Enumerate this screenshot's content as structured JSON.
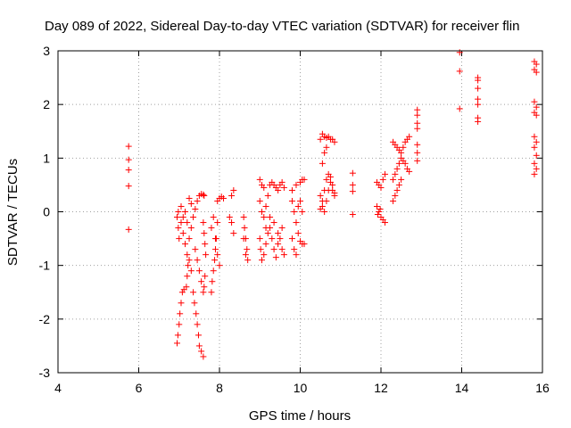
{
  "chart_data": {
    "type": "scatter",
    "title": "Day 089 of 2022, Sidereal Day-to-day VTEC variation (SDTVAR) for receiver flin",
    "xlabel": "GPS time / hours",
    "ylabel": "SDTVAR / TECUs",
    "xlim": [
      4,
      16
    ],
    "ylim": [
      -3,
      3
    ],
    "xticks": [
      4,
      6,
      8,
      10,
      12,
      14,
      16
    ],
    "yticks": [
      -3,
      -2,
      -1,
      0,
      1,
      2,
      3
    ],
    "xtick_labels": [
      "4",
      "6",
      "8",
      "10",
      "12",
      "14",
      "16"
    ],
    "ytick_labels": [
      "-3",
      "-2",
      "-1",
      "0",
      "1",
      "2",
      "3"
    ],
    "grid": true,
    "marker": "plus",
    "color": "#ff0000",
    "series": [
      {
        "name": "SDTVAR",
        "points": [
          [
            5.75,
            1.22
          ],
          [
            5.75,
            0.97
          ],
          [
            5.75,
            0.78
          ],
          [
            5.75,
            0.48
          ],
          [
            5.75,
            -0.33
          ],
          [
            6.95,
            -2.45
          ],
          [
            6.97,
            -2.3
          ],
          [
            7.0,
            -2.1
          ],
          [
            7.02,
            -1.9
          ],
          [
            7.05,
            -1.7
          ],
          [
            7.08,
            -1.5
          ],
          [
            7.12,
            -1.45
          ],
          [
            7.18,
            -1.4
          ],
          [
            7.2,
            -1.2
          ],
          [
            7.22,
            -1.0
          ],
          [
            7.25,
            -0.9
          ],
          [
            7.3,
            -1.1
          ],
          [
            7.35,
            -1.5
          ],
          [
            7.38,
            -1.7
          ],
          [
            7.42,
            -1.9
          ],
          [
            7.45,
            -2.1
          ],
          [
            7.48,
            -2.3
          ],
          [
            7.5,
            -2.5
          ],
          [
            7.55,
            -2.6
          ],
          [
            7.6,
            -2.7
          ],
          [
            6.95,
            -0.1
          ],
          [
            6.98,
            -0.3
          ],
          [
            7.0,
            -0.5
          ],
          [
            7.05,
            -0.2
          ],
          [
            7.1,
            -0.4
          ],
          [
            7.15,
            -0.6
          ],
          [
            7.2,
            -0.8
          ],
          [
            7.25,
            -0.5
          ],
          [
            7.3,
            -0.3
          ],
          [
            7.35,
            -0.1
          ],
          [
            7.4,
            0.05
          ],
          [
            7.45,
            0.2
          ],
          [
            7.5,
            0.3
          ],
          [
            7.55,
            0.33
          ],
          [
            7.6,
            0.32
          ],
          [
            6.98,
            0.0
          ],
          [
            7.05,
            0.1
          ],
          [
            7.1,
            -0.1
          ],
          [
            7.15,
            0.0
          ],
          [
            7.2,
            -0.2
          ],
          [
            7.25,
            0.25
          ],
          [
            7.3,
            0.15
          ],
          [
            7.4,
            -0.7
          ],
          [
            7.45,
            -0.9
          ],
          [
            7.5,
            -1.1
          ],
          [
            7.55,
            -1.3
          ],
          [
            7.6,
            -1.5
          ],
          [
            7.62,
            -1.4
          ],
          [
            7.64,
            -1.2
          ],
          [
            7.6,
            -0.2
          ],
          [
            7.62,
            -0.4
          ],
          [
            7.64,
            -0.6
          ],
          [
            7.66,
            -0.8
          ],
          [
            7.62,
            0.3
          ],
          [
            7.8,
            -1.5
          ],
          [
            7.82,
            -1.3
          ],
          [
            7.85,
            -1.1
          ],
          [
            7.88,
            -0.9
          ],
          [
            7.9,
            -0.7
          ],
          [
            7.92,
            -0.5
          ],
          [
            7.95,
            -0.2
          ],
          [
            7.95,
            0.2
          ],
          [
            8.0,
            0.25
          ],
          [
            8.05,
            0.28
          ],
          [
            8.1,
            0.25
          ],
          [
            7.8,
            -0.3
          ],
          [
            7.85,
            -0.1
          ],
          [
            7.9,
            -0.5
          ],
          [
            7.95,
            -0.8
          ],
          [
            8.0,
            -1.0
          ],
          [
            8.3,
            0.3
          ],
          [
            8.35,
            0.4
          ],
          [
            8.3,
            -0.2
          ],
          [
            8.35,
            -0.4
          ],
          [
            8.25,
            -0.1
          ],
          [
            8.6,
            -0.1
          ],
          [
            8.62,
            -0.3
          ],
          [
            8.65,
            -0.5
          ],
          [
            8.68,
            -0.7
          ],
          [
            8.7,
            -0.9
          ],
          [
            8.6,
            -0.5
          ],
          [
            8.65,
            -0.8
          ],
          [
            9.0,
            0.6
          ],
          [
            9.05,
            0.5
          ],
          [
            9.1,
            0.45
          ],
          [
            9.0,
            -0.5
          ],
          [
            9.02,
            -0.7
          ],
          [
            9.05,
            -0.9
          ],
          [
            9.1,
            -0.8
          ],
          [
            9.15,
            -0.6
          ],
          [
            9.2,
            -0.4
          ],
          [
            9.25,
            -0.3
          ],
          [
            9.3,
            -0.5
          ],
          [
            9.35,
            -0.7
          ],
          [
            9.4,
            -0.85
          ],
          [
            9.45,
            -0.6
          ],
          [
            9.5,
            -0.5
          ],
          [
            9.55,
            -0.7
          ],
          [
            9.6,
            -0.8
          ],
          [
            9.0,
            0.2
          ],
          [
            9.05,
            0.0
          ],
          [
            9.1,
            -0.1
          ],
          [
            9.15,
            0.1
          ],
          [
            9.2,
            0.3
          ],
          [
            9.25,
            0.5
          ],
          [
            9.3,
            0.55
          ],
          [
            9.35,
            0.5
          ],
          [
            9.4,
            0.45
          ],
          [
            9.45,
            0.4
          ],
          [
            9.5,
            0.5
          ],
          [
            9.55,
            0.55
          ],
          [
            9.6,
            0.45
          ],
          [
            9.15,
            -0.3
          ],
          [
            9.25,
            -0.1
          ],
          [
            9.35,
            -0.2
          ],
          [
            9.45,
            -0.4
          ],
          [
            9.55,
            -0.3
          ],
          [
            9.8,
            0.2
          ],
          [
            9.85,
            0.0
          ],
          [
            9.9,
            -0.2
          ],
          [
            9.95,
            -0.4
          ],
          [
            10.0,
            -0.55
          ],
          [
            10.05,
            -0.6
          ],
          [
            10.1,
            -0.6
          ],
          [
            9.8,
            -0.5
          ],
          [
            9.85,
            -0.7
          ],
          [
            9.9,
            -0.8
          ],
          [
            9.8,
            0.4
          ],
          [
            9.9,
            0.5
          ],
          [
            10.0,
            0.55
          ],
          [
            10.05,
            0.6
          ],
          [
            10.1,
            0.6
          ],
          [
            9.95,
            0.1
          ],
          [
            10.0,
            0.2
          ],
          [
            10.05,
            0.0
          ],
          [
            10.5,
            1.35
          ],
          [
            10.55,
            1.45
          ],
          [
            10.6,
            1.4
          ],
          [
            10.65,
            1.38
          ],
          [
            10.7,
            1.4
          ],
          [
            10.75,
            1.35
          ],
          [
            10.8,
            1.35
          ],
          [
            10.85,
            1.3
          ],
          [
            10.5,
            0.3
          ],
          [
            10.55,
            0.2
          ],
          [
            10.6,
            0.4
          ],
          [
            10.65,
            0.6
          ],
          [
            10.7,
            0.7
          ],
          [
            10.75,
            0.65
          ],
          [
            10.8,
            0.5
          ],
          [
            10.85,
            0.35
          ],
          [
            10.5,
            0.05
          ],
          [
            10.55,
            0.1
          ],
          [
            10.6,
            0.0
          ],
          [
            10.65,
            0.2
          ],
          [
            10.7,
            0.4
          ],
          [
            10.75,
            0.55
          ],
          [
            10.8,
            0.4
          ],
          [
            10.85,
            0.3
          ],
          [
            10.55,
            0.9
          ],
          [
            10.6,
            1.1
          ],
          [
            10.65,
            1.2
          ],
          [
            11.3,
            0.72
          ],
          [
            11.3,
            0.5
          ],
          [
            11.3,
            0.38
          ],
          [
            11.3,
            -0.05
          ],
          [
            11.9,
            0.55
          ],
          [
            11.95,
            0.5
          ],
          [
            12.0,
            0.45
          ],
          [
            12.05,
            0.6
          ],
          [
            12.1,
            0.7
          ],
          [
            11.9,
            0.1
          ],
          [
            11.95,
            0.0
          ],
          [
            12.0,
            -0.1
          ],
          [
            12.05,
            -0.15
          ],
          [
            12.1,
            -0.2
          ],
          [
            11.92,
            -0.05
          ],
          [
            11.98,
            0.05
          ],
          [
            12.3,
            1.3
          ],
          [
            12.35,
            1.25
          ],
          [
            12.4,
            1.2
          ],
          [
            12.45,
            1.15
          ],
          [
            12.5,
            1.1
          ],
          [
            12.55,
            1.2
          ],
          [
            12.6,
            1.3
          ],
          [
            12.65,
            1.35
          ],
          [
            12.7,
            1.4
          ],
          [
            12.3,
            0.6
          ],
          [
            12.35,
            0.7
          ],
          [
            12.4,
            0.8
          ],
          [
            12.45,
            0.9
          ],
          [
            12.5,
            1.0
          ],
          [
            12.55,
            0.95
          ],
          [
            12.6,
            0.9
          ],
          [
            12.65,
            0.8
          ],
          [
            12.7,
            0.75
          ],
          [
            12.3,
            0.2
          ],
          [
            12.35,
            0.3
          ],
          [
            12.4,
            0.4
          ],
          [
            12.45,
            0.5
          ],
          [
            12.5,
            0.6
          ],
          [
            12.9,
            1.9
          ],
          [
            12.9,
            1.8
          ],
          [
            12.9,
            1.65
          ],
          [
            12.9,
            1.55
          ],
          [
            12.9,
            1.25
          ],
          [
            12.9,
            1.1
          ],
          [
            12.9,
            0.95
          ],
          [
            13.95,
            2.97
          ],
          [
            13.95,
            2.62
          ],
          [
            13.95,
            1.92
          ],
          [
            14.4,
            2.5
          ],
          [
            14.4,
            2.45
          ],
          [
            14.4,
            2.3
          ],
          [
            14.4,
            2.1
          ],
          [
            14.4,
            2.0
          ],
          [
            14.4,
            1.75
          ],
          [
            14.4,
            1.68
          ],
          [
            15.8,
            2.8
          ],
          [
            15.85,
            2.75
          ],
          [
            15.8,
            2.65
          ],
          [
            15.85,
            2.6
          ],
          [
            15.8,
            2.05
          ],
          [
            15.85,
            1.95
          ],
          [
            15.8,
            1.85
          ],
          [
            15.85,
            1.8
          ],
          [
            15.8,
            1.4
          ],
          [
            15.85,
            1.3
          ],
          [
            15.8,
            1.2
          ],
          [
            15.85,
            1.05
          ],
          [
            15.8,
            0.9
          ],
          [
            15.85,
            0.8
          ],
          [
            15.8,
            0.7
          ]
        ]
      }
    ]
  }
}
